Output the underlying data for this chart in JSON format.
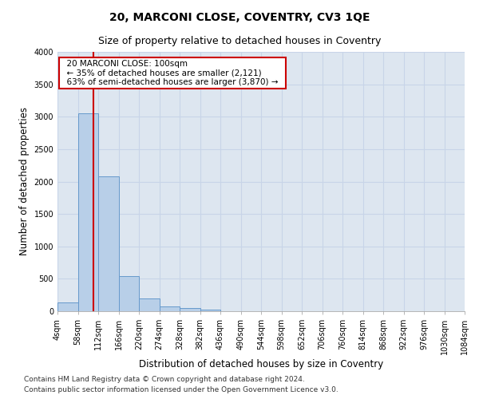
{
  "title": "20, MARCONI CLOSE, COVENTRY, CV3 1QE",
  "subtitle": "Size of property relative to detached houses in Coventry",
  "xlabel": "Distribution of detached houses by size in Coventry",
  "ylabel": "Number of detached properties",
  "bin_edges": [
    4,
    58,
    112,
    166,
    220,
    274,
    328,
    382,
    436,
    490,
    544,
    598,
    652,
    706,
    760,
    814,
    868,
    922,
    976,
    1030,
    1084
  ],
  "bar_heights": [
    130,
    3050,
    2080,
    545,
    195,
    75,
    55,
    30,
    0,
    0,
    0,
    0,
    0,
    0,
    0,
    0,
    0,
    0,
    0,
    0
  ],
  "bar_color": "#b8cfe8",
  "bar_edge_color": "#6699cc",
  "vline_x": 100,
  "vline_color": "#cc0000",
  "annotation_text": "  20 MARCONI CLOSE: 100sqm  \n  ← 35% of detached houses are smaller (2,121)  \n  63% of semi-detached houses are larger (3,870) →  ",
  "annotation_box_color": "#ffffff",
  "annotation_box_edge_color": "#cc0000",
  "ylim": [
    0,
    4000
  ],
  "yticks": [
    0,
    500,
    1000,
    1500,
    2000,
    2500,
    3000,
    3500,
    4000
  ],
  "grid_color": "#c8d4e8",
  "background_color": "#dde6f0",
  "footer_line1": "Contains HM Land Registry data © Crown copyright and database right 2024.",
  "footer_line2": "Contains public sector information licensed under the Open Government Licence v3.0.",
  "title_fontsize": 10,
  "subtitle_fontsize": 9,
  "axis_label_fontsize": 8.5,
  "tick_fontsize": 7,
  "annotation_fontsize": 7.5,
  "footer_fontsize": 6.5
}
